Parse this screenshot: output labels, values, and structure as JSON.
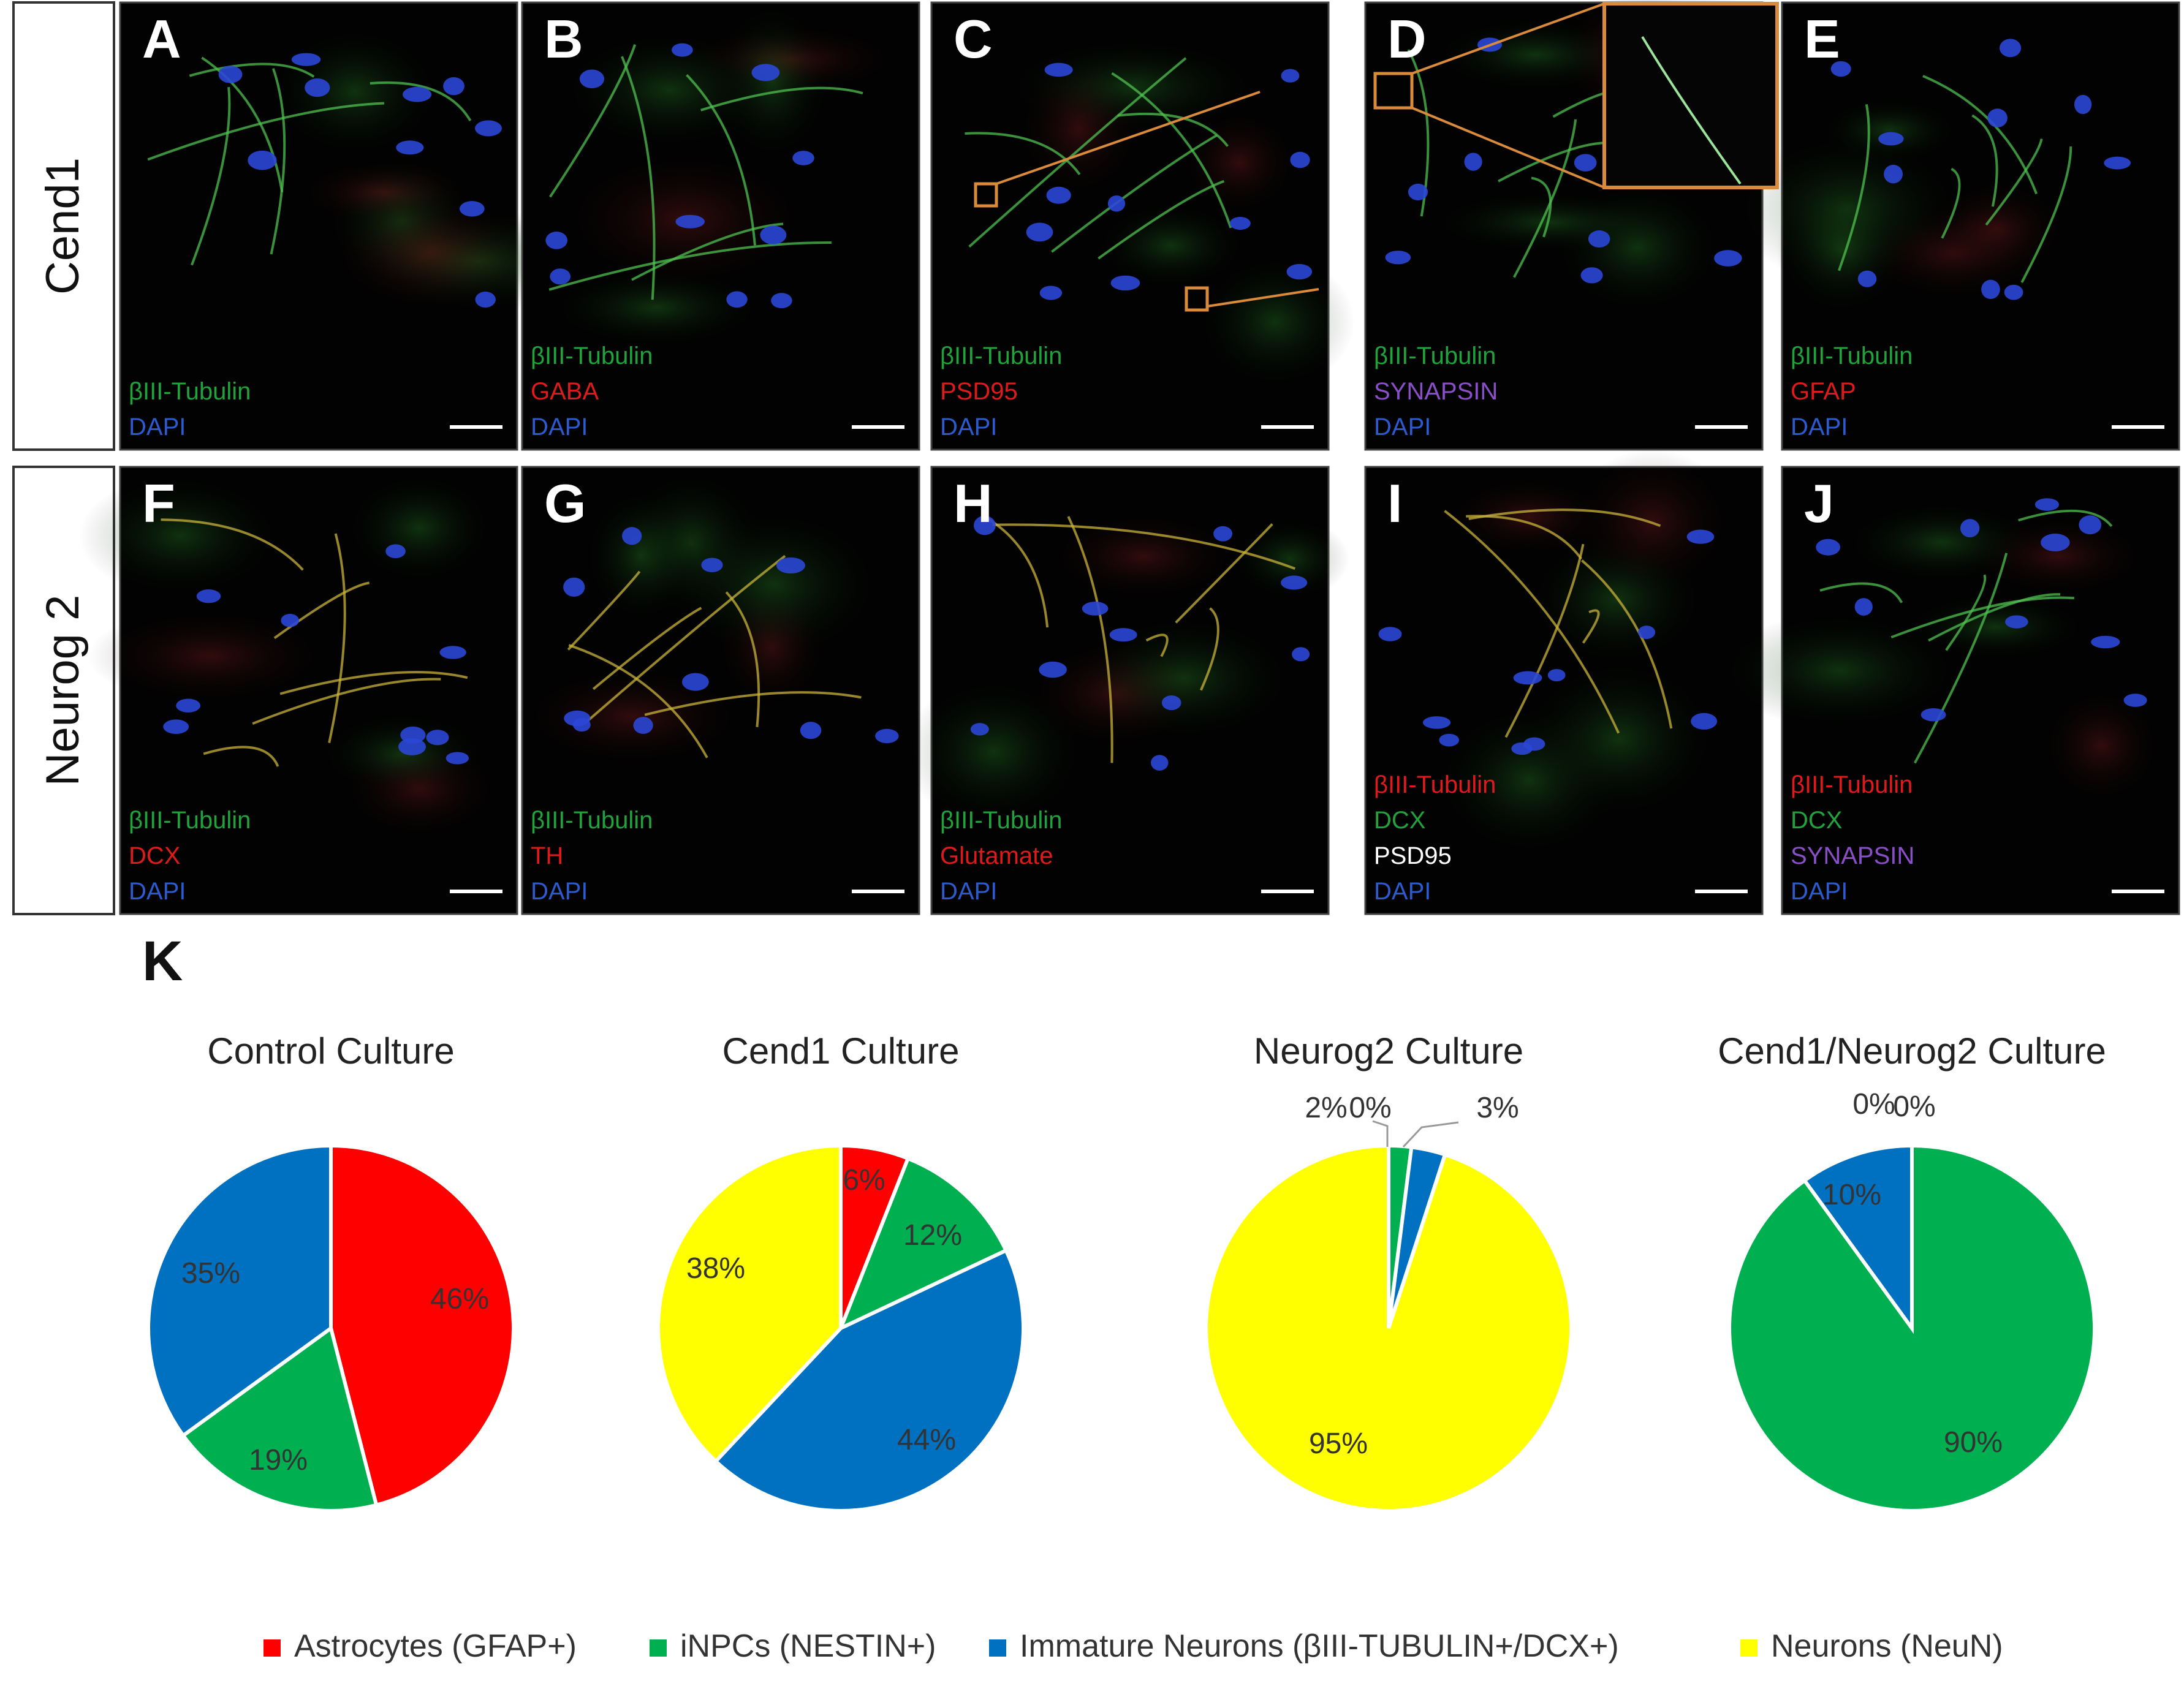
{
  "rows": [
    {
      "label": "Cend1",
      "panels": [
        {
          "letter": "A",
          "markers": [
            {
              "text": "βIII-Tubulin",
              "color": "#1fa33a"
            },
            {
              "text": "DAPI",
              "color": "#2a5bd0"
            }
          ]
        },
        {
          "letter": "B",
          "markers": [
            {
              "text": "βIII-Tubulin",
              "color": "#1fa33a"
            },
            {
              "text": "GABA",
              "color": "#e0191b"
            },
            {
              "text": "DAPI",
              "color": "#2a5bd0"
            }
          ]
        },
        {
          "letter": "C",
          "markers": [
            {
              "text": "βIII-Tubulin",
              "color": "#1fa33a"
            },
            {
              "text": "PSD95",
              "color": "#e0191b"
            },
            {
              "text": "DAPI",
              "color": "#2a5bd0"
            }
          ]
        },
        {
          "letter": "D",
          "markers": [
            {
              "text": "βIII-Tubulin",
              "color": "#1fa33a"
            },
            {
              "text": "SYNAPSIN",
              "color": "#8a4fc8"
            },
            {
              "text": "DAPI",
              "color": "#2a5bd0"
            }
          ]
        },
        {
          "letter": "E",
          "markers": [
            {
              "text": "βIII-Tubulin",
              "color": "#1fa33a"
            },
            {
              "text": "GFAP",
              "color": "#e0191b"
            },
            {
              "text": "DAPI",
              "color": "#2a5bd0"
            }
          ]
        }
      ]
    },
    {
      "label": "Neurog 2",
      "panels": [
        {
          "letter": "F",
          "markers": [
            {
              "text": "βIII-Tubulin",
              "color": "#1fa33a"
            },
            {
              "text": "DCX",
              "color": "#e0191b"
            },
            {
              "text": "DAPI",
              "color": "#2a5bd0"
            }
          ]
        },
        {
          "letter": "G",
          "markers": [
            {
              "text": "βIII-Tubulin",
              "color": "#1fa33a"
            },
            {
              "text": "TH",
              "color": "#e0191b"
            },
            {
              "text": "DAPI",
              "color": "#2a5bd0"
            }
          ]
        },
        {
          "letter": "H",
          "markers": [
            {
              "text": "βIII-Tubulin",
              "color": "#1fa33a"
            },
            {
              "text": "Glutamate",
              "color": "#e0191b"
            },
            {
              "text": "DAPI",
              "color": "#2a5bd0"
            }
          ]
        },
        {
          "letter": "I",
          "markers": [
            {
              "text": "βIII-Tubulin",
              "color": "#e0191b"
            },
            {
              "text": "DCX",
              "color": "#1fa33a"
            },
            {
              "text": "PSD95",
              "color": "#ffffff"
            },
            {
              "text": "DAPI",
              "color": "#2a5bd0"
            }
          ]
        },
        {
          "letter": "J",
          "markers": [
            {
              "text": "βIII-Tubulin",
              "color": "#e0191b"
            },
            {
              "text": "DCX",
              "color": "#1fa33a"
            },
            {
              "text": "SYNAPSIN",
              "color": "#8a4fc8"
            },
            {
              "text": "DAPI",
              "color": "#2a5bd0"
            }
          ]
        }
      ]
    }
  ],
  "panel_k_letter": "K",
  "colors": {
    "Astrocytes (GFAP+)": "#ff0000",
    "iNPCs (NESTIN+)": "#00b050",
    "Immature Neurons (βIII-TUBULIN+/DCX+)": "#0070c0",
    "Neurons (NeuN)": "#ffff00"
  },
  "chart_data": [
    {
      "type": "pie",
      "title": "Control Culture",
      "categories": [
        "Astrocytes (GFAP+)",
        "iNPCs (NESTIN+)",
        "Immature Neurons (βIII-TUBULIN+/DCX+)",
        "Neurons (NeuN)"
      ],
      "values": [
        46,
        19,
        35,
        0
      ],
      "labels": [
        "46%",
        "19%",
        "35%",
        ""
      ]
    },
    {
      "type": "pie",
      "title": "Cend1 Culture",
      "categories": [
        "Astrocytes (GFAP+)",
        "iNPCs (NESTIN+)",
        "Immature Neurons (βIII-TUBULIN+/DCX+)",
        "Neurons (NeuN)"
      ],
      "values": [
        6,
        12,
        44,
        38
      ],
      "labels": [
        "6%",
        "12%",
        "44%",
        "38%"
      ]
    },
    {
      "type": "pie",
      "title": "Neurog2 Culture",
      "categories": [
        "Astrocytes (GFAP+)",
        "iNPCs (NESTIN+)",
        "Immature Neurons (βIII-TUBULIN+/DCX+)",
        "Neurons (NeuN)"
      ],
      "values": [
        0,
        2,
        3,
        95
      ],
      "labels": [
        "0%",
        "2%",
        "3%",
        "95%"
      ]
    },
    {
      "type": "pie",
      "title": "Cend1/Neurog2 Culture",
      "categories": [
        "Astrocytes (GFAP+)",
        "iNPCs (NESTIN+)",
        "Immature Neurons (βIII-TUBULIN+/DCX+)",
        "Neurons (NeuN)"
      ],
      "values": [
        0,
        90,
        10,
        0
      ],
      "labels": [
        "0%",
        "90%",
        "10%",
        "0%"
      ]
    }
  ],
  "legend": [
    {
      "label": "Astrocytes (GFAP+)",
      "color": "#ff0000"
    },
    {
      "label": "iNPCs (NESTIN+)",
      "color": "#00b050"
    },
    {
      "label": "Immature Neurons (βIII-TUBULIN+/DCX+)",
      "color": "#0070c0"
    },
    {
      "label": "Neurons (NeuN)",
      "color": "#ffff00"
    }
  ]
}
